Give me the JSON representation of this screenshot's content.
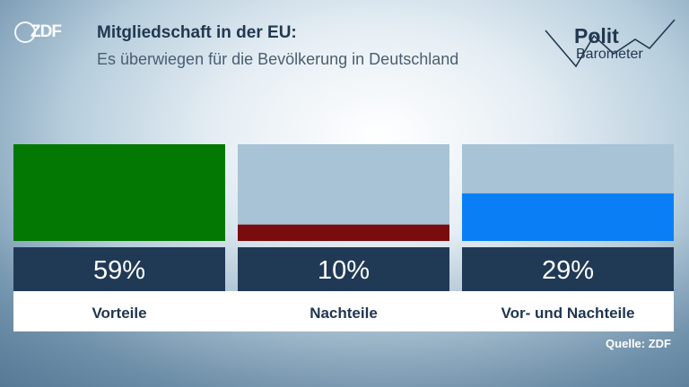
{
  "logo": {
    "text": "ZDF"
  },
  "header": {
    "title": "Mitgliedschaft in der EU:",
    "subtitle": "Es überwiegen für die Bevölkerung in Deutschland"
  },
  "brand": {
    "word1": "Polit",
    "word2": "Barometer"
  },
  "source": "Quelle: ZDF",
  "chart_data": {
    "type": "bar",
    "categories": [
      "Vorteile",
      "Nachteile",
      "Vor- und Nachteile"
    ],
    "values": [
      59,
      10,
      29
    ],
    "value_labels": [
      "59%",
      "10%",
      "29%"
    ],
    "ylim": [
      0,
      59
    ],
    "colors": [
      "#037903",
      "#7a0b0e",
      "#0a7ff5"
    ],
    "track_color": "#a8c3d5",
    "label_box_color": "#203a56",
    "category_box_color": "#ffffff",
    "grid": false
  }
}
